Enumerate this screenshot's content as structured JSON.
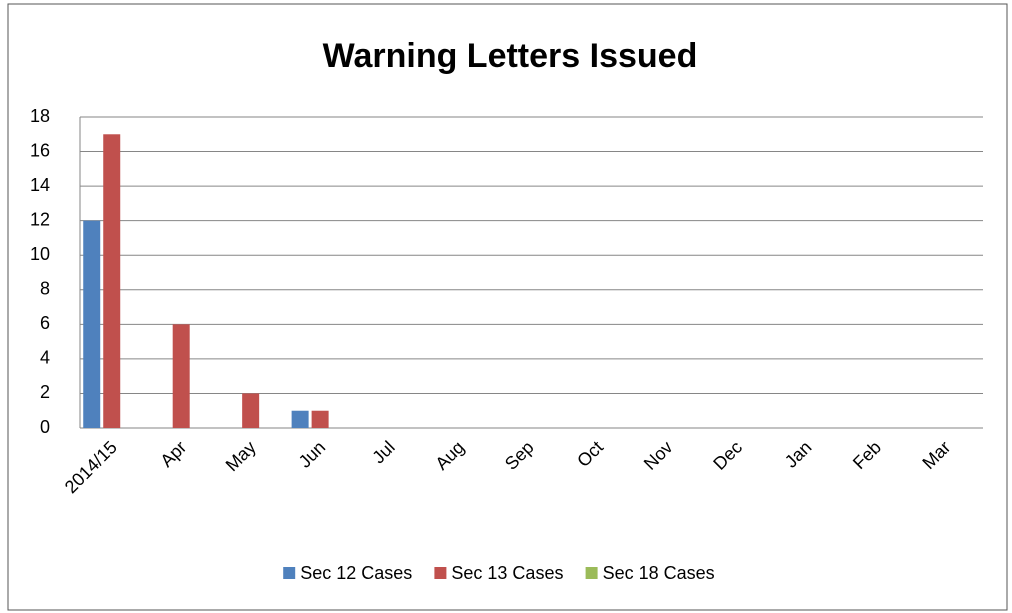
{
  "chart_data": {
    "type": "bar",
    "title": "Warning Letters Issued",
    "categories": [
      "2014/15",
      "Apr",
      "May",
      "Jun",
      "Jul",
      "Aug",
      "Sep",
      "Oct",
      "Nov",
      "Dec",
      "Jan",
      "Feb",
      "Mar"
    ],
    "series": [
      {
        "name": "Sec 12 Cases",
        "color": "#4f81bd",
        "values": [
          12,
          0,
          0,
          1,
          null,
          null,
          null,
          null,
          null,
          null,
          null,
          null,
          null
        ]
      },
      {
        "name": "Sec 13 Cases",
        "color": "#c0504d",
        "values": [
          17,
          6,
          2,
          1,
          null,
          null,
          null,
          null,
          null,
          null,
          null,
          null,
          null
        ]
      },
      {
        "name": "Sec 18 Cases",
        "color": "#9bbb59",
        "values": [
          0,
          0,
          0,
          0,
          null,
          null,
          null,
          null,
          null,
          null,
          null,
          null,
          null
        ]
      }
    ],
    "ylim": [
      0,
      18
    ],
    "yticks": [
      0,
      2,
      4,
      6,
      8,
      10,
      12,
      14,
      16,
      18
    ],
    "grid": true,
    "legend": "bottom"
  }
}
